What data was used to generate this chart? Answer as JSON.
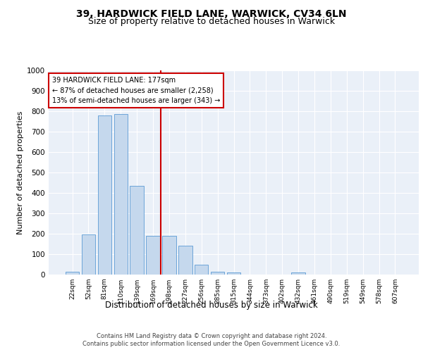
{
  "title1": "39, HARDWICK FIELD LANE, WARWICK, CV34 6LN",
  "title2": "Size of property relative to detached houses in Warwick",
  "xlabel": "Distribution of detached houses by size in Warwick",
  "ylabel": "Number of detached properties",
  "bar_labels": [
    "22sqm",
    "52sqm",
    "81sqm",
    "110sqm",
    "139sqm",
    "169sqm",
    "198sqm",
    "227sqm",
    "256sqm",
    "285sqm",
    "315sqm",
    "344sqm",
    "373sqm",
    "402sqm",
    "432sqm",
    "461sqm",
    "490sqm",
    "519sqm",
    "549sqm",
    "578sqm",
    "607sqm"
  ],
  "bar_values": [
    15,
    195,
    780,
    785,
    435,
    190,
    190,
    140,
    48,
    15,
    10,
    0,
    0,
    0,
    10,
    0,
    0,
    0,
    0,
    0,
    0
  ],
  "bar_color": "#c5d8ed",
  "bar_edge_color": "#5b9bd5",
  "vline_x": 5.5,
  "vline_color": "#cc0000",
  "ylim": [
    0,
    1000
  ],
  "yticks": [
    0,
    100,
    200,
    300,
    400,
    500,
    600,
    700,
    800,
    900,
    1000
  ],
  "annotation_text": "39 HARDWICK FIELD LANE: 177sqm\n← 87% of detached houses are smaller (2,258)\n13% of semi-detached houses are larger (343) →",
  "annotation_box_color": "#ffffff",
  "annotation_box_edge": "#cc0000",
  "footer1": "Contains HM Land Registry data © Crown copyright and database right 2024.",
  "footer2": "Contains public sector information licensed under the Open Government Licence v3.0.",
  "bg_color": "#eaf0f8",
  "title1_fontsize": 10,
  "title2_fontsize": 9,
  "xlabel_fontsize": 8.5,
  "ylabel_fontsize": 8
}
